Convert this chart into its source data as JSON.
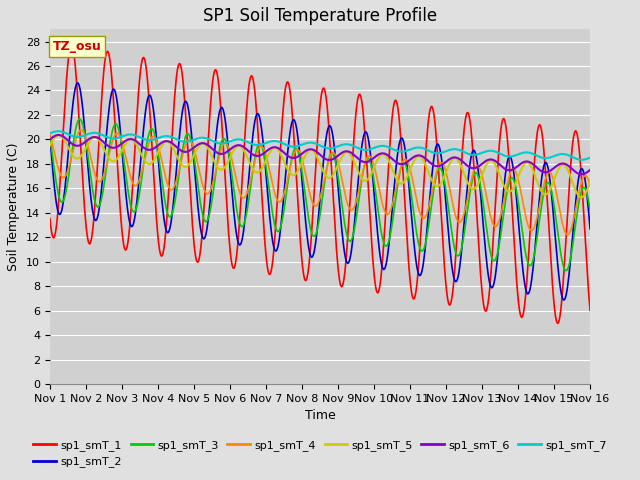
{
  "title": "SP1 Soil Temperature Profile",
  "xlabel": "Time",
  "ylabel": "Soil Temperature (C)",
  "annotation": "TZ_osu",
  "ylim": [
    0,
    29
  ],
  "yticks": [
    0,
    2,
    4,
    6,
    8,
    10,
    12,
    14,
    16,
    18,
    20,
    22,
    24,
    26,
    28
  ],
  "xtick_labels": [
    "Nov 1",
    "Nov 2",
    "Nov 3",
    "Nov 4",
    "Nov 5",
    "Nov 6",
    "Nov 7",
    "Nov 8",
    "Nov 9",
    "Nov 10",
    "Nov 11",
    "Nov 12",
    "Nov 13",
    "Nov 14",
    "Nov 15",
    "Nov 16"
  ],
  "series_colors": {
    "sp1_smT_1": "#ff0000",
    "sp1_smT_2": "#0000cc",
    "sp1_smT_3": "#00cc00",
    "sp1_smT_4": "#ff8800",
    "sp1_smT_5": "#cccc00",
    "sp1_smT_6": "#8800cc",
    "sp1_smT_7": "#00cccc"
  },
  "legend_labels": [
    "sp1_smT_1",
    "sp1_smT_2",
    "sp1_smT_3",
    "sp1_smT_4",
    "sp1_smT_5",
    "sp1_smT_6",
    "sp1_smT_7"
  ],
  "background_color": "#e0e0e0",
  "plot_bg_color": "#d0d0d0",
  "grid_color": "#ffffff",
  "title_fontsize": 12,
  "axis_fontsize": 9,
  "tick_fontsize": 8
}
